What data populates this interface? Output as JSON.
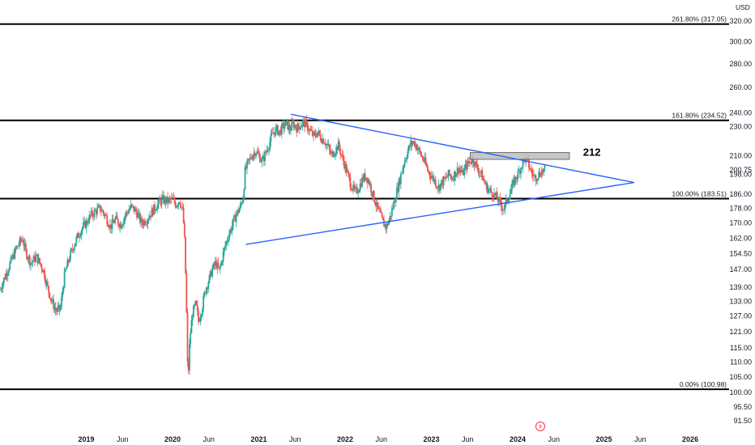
{
  "chart_data": {
    "type": "candlestick",
    "currency": "USD",
    "colors": {
      "up": "#26a69a",
      "down": "#ef5350",
      "trendline": "#2962ff",
      "fib": "#000000",
      "zone": "#bdbdbd"
    },
    "y_scale": "log",
    "y_range": [
      89,
      335
    ],
    "x_range": [
      2018.0,
      2026.45
    ],
    "y_ticks": [
      "320.00",
      "300.00",
      "280.00",
      "260.00",
      "240.00",
      "230.00",
      "210.00",
      "200.75",
      "198.00",
      "186.00",
      "178.00",
      "170.00",
      "162.00",
      "154.50",
      "147.00",
      "139.00",
      "133.00",
      "127.00",
      "121.00",
      "115.00",
      "110.00",
      "105.00",
      "100.00",
      "95.50",
      "91.50"
    ],
    "y_tick_values": [
      320,
      300,
      280,
      260,
      240,
      230,
      210,
      200.75,
      198,
      186,
      178,
      170,
      162,
      154.5,
      147,
      139,
      133,
      127,
      121,
      115,
      110,
      105,
      100,
      95.5,
      91.5
    ],
    "last_price_label": "200.75",
    "x_ticks": [
      {
        "label": "2019",
        "t": 2019.0,
        "year": true
      },
      {
        "label": "Jun",
        "t": 2019.42,
        "year": false
      },
      {
        "label": "2020",
        "t": 2020.0,
        "year": true
      },
      {
        "label": "Jun",
        "t": 2020.42,
        "year": false
      },
      {
        "label": "2021",
        "t": 2021.0,
        "year": true
      },
      {
        "label": "Jun",
        "t": 2021.42,
        "year": false
      },
      {
        "label": "2022",
        "t": 2022.0,
        "year": true
      },
      {
        "label": "Jun",
        "t": 2022.42,
        "year": false
      },
      {
        "label": "2023",
        "t": 2023.0,
        "year": true
      },
      {
        "label": "Jun",
        "t": 2023.42,
        "year": false
      },
      {
        "label": "2024",
        "t": 2024.0,
        "year": true
      },
      {
        "label": "Jun",
        "t": 2024.42,
        "year": false
      },
      {
        "label": "2025",
        "t": 2025.0,
        "year": true
      },
      {
        "label": "Jun",
        "t": 2025.42,
        "year": false
      },
      {
        "label": "2026",
        "t": 2026.0,
        "year": true
      }
    ],
    "fib_levels": [
      {
        "label": "261.80% (317.05)",
        "value": 317.05
      },
      {
        "label": "161.80% (234.52)",
        "value": 234.52
      },
      {
        "label": "100.00% (183.51)",
        "value": 183.51
      },
      {
        "label": "0.00% (100.98)",
        "value": 100.98
      }
    ],
    "trendlines": [
      {
        "name": "upper",
        "from": {
          "t": 2021.37,
          "v": 239
        },
        "to": {
          "t": 2025.35,
          "v": 193
        }
      },
      {
        "name": "lower",
        "from": {
          "t": 2020.85,
          "v": 159
        },
        "to": {
          "t": 2025.35,
          "v": 193
        }
      }
    ],
    "resistance_zone": {
      "t0": 2023.45,
      "t1": 2024.6,
      "v0": 207.5,
      "v1": 212
    },
    "annotation": {
      "text": "212",
      "t": 2024.86,
      "v": 212
    },
    "price_path": [
      [
        2018.0,
        138
      ],
      [
        2018.05,
        143
      ],
      [
        2018.12,
        150
      ],
      [
        2018.2,
        158
      ],
      [
        2018.26,
        162
      ],
      [
        2018.3,
        155
      ],
      [
        2018.36,
        150
      ],
      [
        2018.42,
        153
      ],
      [
        2018.5,
        147
      ],
      [
        2018.55,
        139
      ],
      [
        2018.6,
        133
      ],
      [
        2018.65,
        129
      ],
      [
        2018.7,
        130
      ],
      [
        2018.75,
        145
      ],
      [
        2018.8,
        152
      ],
      [
        2018.85,
        158
      ],
      [
        2018.9,
        163
      ],
      [
        2018.96,
        168
      ],
      [
        2019.0,
        170
      ],
      [
        2019.05,
        174
      ],
      [
        2019.1,
        176
      ],
      [
        2019.16,
        178
      ],
      [
        2019.22,
        174
      ],
      [
        2019.28,
        168
      ],
      [
        2019.34,
        172
      ],
      [
        2019.4,
        169
      ],
      [
        2019.46,
        175
      ],
      [
        2019.52,
        179
      ],
      [
        2019.58,
        176
      ],
      [
        2019.64,
        170
      ],
      [
        2019.7,
        172
      ],
      [
        2019.76,
        176
      ],
      [
        2019.82,
        180
      ],
      [
        2019.88,
        183
      ],
      [
        2019.94,
        182
      ],
      [
        2020.0,
        183
      ],
      [
        2020.04,
        180
      ],
      [
        2020.08,
        183
      ],
      [
        2020.12,
        176
      ],
      [
        2020.14,
        160
      ],
      [
        2020.16,
        132
      ],
      [
        2020.17,
        112
      ],
      [
        2020.18,
        104
      ],
      [
        2020.2,
        118
      ],
      [
        2020.23,
        128
      ],
      [
        2020.27,
        132
      ],
      [
        2020.3,
        125
      ],
      [
        2020.34,
        130
      ],
      [
        2020.38,
        138
      ],
      [
        2020.42,
        142
      ],
      [
        2020.46,
        147
      ],
      [
        2020.5,
        150
      ],
      [
        2020.54,
        146
      ],
      [
        2020.58,
        153
      ],
      [
        2020.62,
        160
      ],
      [
        2020.66,
        165
      ],
      [
        2020.7,
        170
      ],
      [
        2020.74,
        175
      ],
      [
        2020.78,
        178
      ],
      [
        2020.82,
        185
      ],
      [
        2020.84,
        200
      ],
      [
        2020.88,
        206
      ],
      [
        2020.92,
        210
      ],
      [
        2020.96,
        213
      ],
      [
        2021.0,
        210
      ],
      [
        2021.04,
        206
      ],
      [
        2021.08,
        212
      ],
      [
        2021.12,
        218
      ],
      [
        2021.16,
        225
      ],
      [
        2021.2,
        228
      ],
      [
        2021.24,
        226
      ],
      [
        2021.28,
        230
      ],
      [
        2021.32,
        232
      ],
      [
        2021.36,
        228
      ],
      [
        2021.4,
        232
      ],
      [
        2021.44,
        229
      ],
      [
        2021.48,
        231
      ],
      [
        2021.52,
        233
      ],
      [
        2021.56,
        230
      ],
      [
        2021.6,
        226
      ],
      [
        2021.64,
        223
      ],
      [
        2021.68,
        226
      ],
      [
        2021.72,
        222
      ],
      [
        2021.76,
        220
      ],
      [
        2021.8,
        216
      ],
      [
        2021.84,
        210
      ],
      [
        2021.88,
        213
      ],
      [
        2021.92,
        217
      ],
      [
        2021.96,
        210
      ],
      [
        2022.0,
        203
      ],
      [
        2022.04,
        196
      ],
      [
        2022.08,
        190
      ],
      [
        2022.12,
        187
      ],
      [
        2022.16,
        190
      ],
      [
        2022.2,
        195
      ],
      [
        2022.24,
        197
      ],
      [
        2022.28,
        193
      ],
      [
        2022.32,
        186
      ],
      [
        2022.36,
        180
      ],
      [
        2022.4,
        175
      ],
      [
        2022.44,
        170
      ],
      [
        2022.48,
        168
      ],
      [
        2022.52,
        173
      ],
      [
        2022.56,
        180
      ],
      [
        2022.6,
        188
      ],
      [
        2022.64,
        196
      ],
      [
        2022.68,
        205
      ],
      [
        2022.72,
        212
      ],
      [
        2022.76,
        218
      ],
      [
        2022.8,
        219
      ],
      [
        2022.84,
        215
      ],
      [
        2022.88,
        210
      ],
      [
        2022.92,
        206
      ],
      [
        2022.96,
        200
      ],
      [
        2023.0,
        197
      ],
      [
        2023.04,
        194
      ],
      [
        2023.08,
        190
      ],
      [
        2023.12,
        193
      ],
      [
        2023.16,
        195
      ],
      [
        2023.2,
        198
      ],
      [
        2023.24,
        196
      ],
      [
        2023.28,
        199
      ],
      [
        2023.32,
        202
      ],
      [
        2023.36,
        198
      ],
      [
        2023.4,
        203
      ],
      [
        2023.44,
        206
      ],
      [
        2023.48,
        208
      ],
      [
        2023.52,
        203
      ],
      [
        2023.56,
        200
      ],
      [
        2023.6,
        195
      ],
      [
        2023.64,
        190
      ],
      [
        2023.68,
        188
      ],
      [
        2023.72,
        186
      ],
      [
        2023.76,
        184
      ],
      [
        2023.8,
        180
      ],
      [
        2023.84,
        178
      ],
      [
        2023.88,
        183
      ],
      [
        2023.92,
        188
      ],
      [
        2023.96,
        194
      ],
      [
        2024.0,
        198
      ],
      [
        2024.04,
        203
      ],
      [
        2024.08,
        208
      ],
      [
        2024.12,
        205
      ],
      [
        2024.16,
        199
      ],
      [
        2024.2,
        196
      ],
      [
        2024.24,
        198
      ],
      [
        2024.28,
        200
      ],
      [
        2024.32,
        200.75
      ]
    ],
    "candle_seed": 7,
    "candle_step": 0.0115
  }
}
